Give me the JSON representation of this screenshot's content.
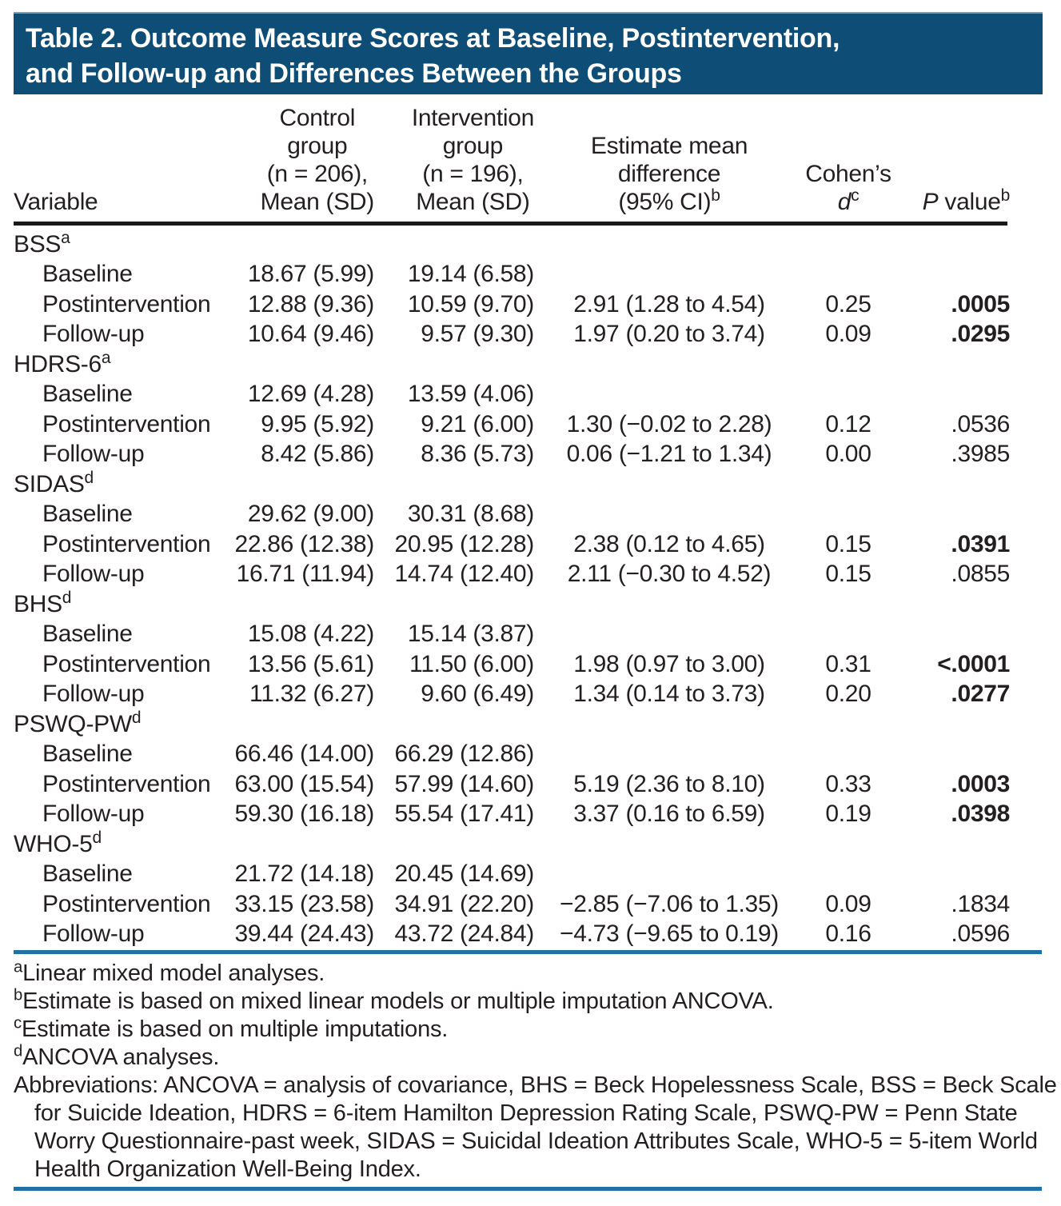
{
  "title": {
    "line1": "Table 2. Outcome Measure Scores at Baseline, Postintervention,",
    "line2": "and Follow-up and Differences Between the Groups"
  },
  "colors": {
    "band_background": "#0d4d76",
    "teal_rule": "#1f72a3",
    "black_rule": "#1b1819",
    "text": "#231f20",
    "title_text": "#ffffff"
  },
  "header": {
    "variable": "Variable",
    "control_lines": [
      "Control",
      "group",
      "(n = 206),",
      "Mean (SD)"
    ],
    "intervention_lines": [
      "Intervention",
      "group",
      "(n = 196),",
      "Mean (SD)"
    ],
    "estimate_lines": [
      "Estimate mean",
      "difference"
    ],
    "estimate_line3": {
      "text": "(95% CI)",
      "sup": "b"
    },
    "cohens": {
      "line1": "Cohen’s",
      "d": "d",
      "sup": "c"
    },
    "pvalue": {
      "p": "P",
      "rest": " value",
      "sup": "b"
    }
  },
  "groups": [
    {
      "label": "BSS",
      "sup": "a",
      "rows": [
        {
          "label": "Baseline",
          "control": "18.67 (5.99)",
          "intervention": "19.14 (6.58)",
          "estimate": "",
          "cohens": "",
          "p": "",
          "p_bold": false
        },
        {
          "label": "Postintervention",
          "control": "12.88 (9.36)",
          "intervention": "10.59 (9.70)",
          "estimate": "2.91 (1.28 to 4.54)",
          "cohens": "0.25",
          "p": ".0005",
          "p_bold": true
        },
        {
          "label": "Follow-up",
          "control": "10.64 (9.46)",
          "intervention": "9.57 (9.30)",
          "estimate": "1.97 (0.20 to 3.74)",
          "cohens": "0.09",
          "p": ".0295",
          "p_bold": true
        }
      ]
    },
    {
      "label": "HDRS-6",
      "sup": "a",
      "rows": [
        {
          "label": "Baseline",
          "control": "12.69 (4.28)",
          "intervention": "13.59 (4.06)",
          "estimate": "",
          "cohens": "",
          "p": "",
          "p_bold": false
        },
        {
          "label": "Postintervention",
          "control": "9.95 (5.92)",
          "intervention": "9.21 (6.00)",
          "estimate": "1.30 (−0.02 to 2.28)",
          "cohens": "0.12",
          "p": ".0536",
          "p_bold": false
        },
        {
          "label": "Follow-up",
          "control": "8.42 (5.86)",
          "intervention": "8.36 (5.73)",
          "estimate": "0.06 (−1.21 to 1.34)",
          "cohens": "0.00",
          "p": ".3985",
          "p_bold": false
        }
      ]
    },
    {
      "label": "SIDAS",
      "sup": "d",
      "rows": [
        {
          "label": "Baseline",
          "control": "29.62 (9.00)",
          "intervention": "30.31 (8.68)",
          "estimate": "",
          "cohens": "",
          "p": "",
          "p_bold": false
        },
        {
          "label": "Postintervention",
          "control": "22.86 (12.38)",
          "intervention": "20.95 (12.28)",
          "estimate": "2.38 (0.12 to 4.65)",
          "cohens": "0.15",
          "p": ".0391",
          "p_bold": true
        },
        {
          "label": "Follow-up",
          "control": "16.71 (11.94)",
          "intervention": "14.74 (12.40)",
          "estimate": "2.11 (−0.30 to 4.52)",
          "cohens": "0.15",
          "p": ".0855",
          "p_bold": false
        }
      ]
    },
    {
      "label": "BHS",
      "sup": "d",
      "rows": [
        {
          "label": "Baseline",
          "control": "15.08 (4.22)",
          "intervention": "15.14 (3.87)",
          "estimate": "",
          "cohens": "",
          "p": "",
          "p_bold": false
        },
        {
          "label": "Postintervention",
          "control": "13.56 (5.61)",
          "intervention": "11.50 (6.00)",
          "estimate": "1.98 (0.97 to 3.00)",
          "cohens": "0.31",
          "p": "<.0001",
          "p_bold": true
        },
        {
          "label": "Follow-up",
          "control": "11.32 (6.27)",
          "intervention": "9.60 (6.49)",
          "estimate": "1.34 (0.14 to 3.73)",
          "cohens": "0.20",
          "p": ".0277",
          "p_bold": true
        }
      ]
    },
    {
      "label": "PSWQ-PW",
      "sup": "d",
      "rows": [
        {
          "label": "Baseline",
          "control": "66.46 (14.00)",
          "intervention": "66.29 (12.86)",
          "estimate": "",
          "cohens": "",
          "p": "",
          "p_bold": false
        },
        {
          "label": "Postintervention",
          "control": "63.00 (15.54)",
          "intervention": "57.99 (14.60)",
          "estimate": "5.19 (2.36 to 8.10)",
          "cohens": "0.33",
          "p": ".0003",
          "p_bold": true
        },
        {
          "label": "Follow-up",
          "control": "59.30 (16.18)",
          "intervention": "55.54 (17.41)",
          "estimate": "3.37 (0.16 to 6.59)",
          "cohens": "0.19",
          "p": ".0398",
          "p_bold": true
        }
      ]
    },
    {
      "label": "WHO-5",
      "sup": "d",
      "rows": [
        {
          "label": "Baseline",
          "control": "21.72 (14.18)",
          "intervention": "20.45 (14.69)",
          "estimate": "",
          "cohens": "",
          "p": "",
          "p_bold": false
        },
        {
          "label": "Postintervention",
          "control": "33.15 (23.58)",
          "intervention": "34.91 (22.20)",
          "estimate": "−2.85 (−7.06 to 1.35)",
          "cohens": "0.09",
          "p": ".1834",
          "p_bold": false
        },
        {
          "label": "Follow-up",
          "control": "39.44 (24.43)",
          "intervention": "43.72 (24.84)",
          "estimate": "−4.73 (−9.65 to 0.19)",
          "cohens": "0.16",
          "p": ".0596",
          "p_bold": false
        }
      ]
    }
  ],
  "footnotes": [
    {
      "sup": "a",
      "text": "Linear mixed model analyses."
    },
    {
      "sup": "b",
      "text": "Estimate is based on mixed linear models or multiple imputation ANCOVA."
    },
    {
      "sup": "c",
      "text": "Estimate is based on multiple imputations."
    },
    {
      "sup": "d",
      "text": "ANCOVA analyses."
    }
  ],
  "abbreviations_lines": [
    "Abbreviations: ANCOVA = analysis of covariance, BHS = Beck Hopelessness Scale, BSS = Beck Scale",
    "for Suicide Ideation, HDRS = 6-item Hamilton Depression Rating Scale, PSWQ-PW = Penn State",
    "Worry Questionnaire-past week, SIDAS = Suicidal Ideation Attributes Scale, WHO-5 = 5-item World",
    "Health Organization Well-Being Index."
  ]
}
